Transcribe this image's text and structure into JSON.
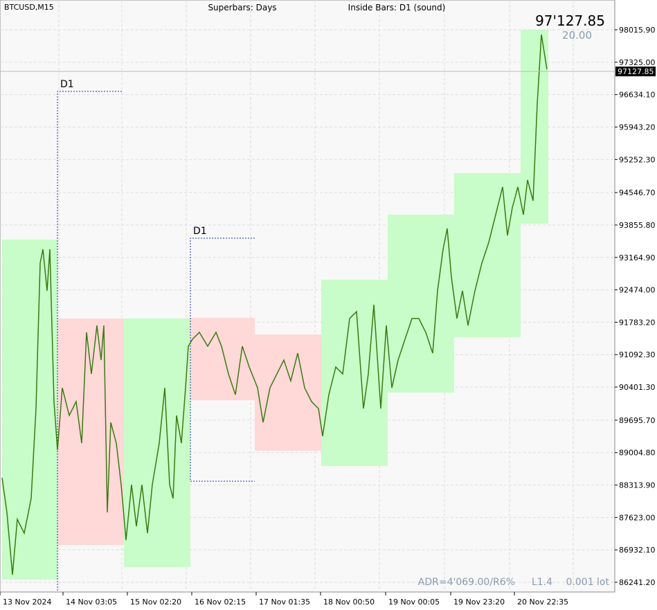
{
  "chart_data": {
    "type": "superbars",
    "symbol": "BTCUSD,M15",
    "superbars_label": "Superbars: Days",
    "inside_label": "Inside Bars: D1  (sound)",
    "big_price": "97'127.85",
    "spread": "20.00",
    "adr": "ADR=4'069.00/R6%",
    "leverage": "L1.4",
    "lot": "0.001 lot",
    "ylim": [
      86034.6,
      98650.4
    ],
    "xlim": [
      0,
      888
    ],
    "grid": true,
    "yticks": [
      {
        "value": 98015.9,
        "label": "98015.90"
      },
      {
        "value": 97325.0,
        "label": "97325.00"
      },
      {
        "value": 96634.1,
        "label": "96634.10"
      },
      {
        "value": 95943.2,
        "label": "95943.20"
      },
      {
        "value": 95252.3,
        "label": "95252.30"
      },
      {
        "value": 94546.7,
        "label": "94546.70"
      },
      {
        "value": 93855.8,
        "label": "93855.80"
      },
      {
        "value": 93164.9,
        "label": "93164.90"
      },
      {
        "value": 92474.0,
        "label": "92474.00"
      },
      {
        "value": 91783.2,
        "label": "91783.20"
      },
      {
        "value": 91092.3,
        "label": "91092.30"
      },
      {
        "value": 90401.3,
        "label": "90401.30"
      },
      {
        "value": 89695.7,
        "label": "89695.70"
      },
      {
        "value": 89004.8,
        "label": "89004.80"
      },
      {
        "value": 88313.9,
        "label": "88313.90"
      },
      {
        "value": 87623.0,
        "label": "87623.00"
      },
      {
        "value": 86932.1,
        "label": "86932.10"
      },
      {
        "value": 86241.2,
        "label": "86241.20"
      }
    ],
    "xticks": [
      {
        "value": 4,
        "label": "13 Nov 2024"
      },
      {
        "value": 95,
        "label": "14 Nov 03:05"
      },
      {
        "value": 188,
        "label": "15 Nov 02:20"
      },
      {
        "value": 281,
        "label": "16 Nov 02:15"
      },
      {
        "value": 374,
        "label": "17 Nov 01:35"
      },
      {
        "value": 467,
        "label": "18 Nov 00:50"
      },
      {
        "value": 561,
        "label": "19 Nov 00:05"
      },
      {
        "value": 655,
        "label": "19 Nov 23:20"
      },
      {
        "value": 747,
        "label": "20 Nov 22:35"
      }
    ],
    "current_price": {
      "value": 97127.85,
      "label": "97127.85"
    },
    "superbars": [
      {
        "start": 3,
        "end": 83,
        "high": 93545,
        "low": 86300,
        "color": "#c8fcc8"
      },
      {
        "start": 83,
        "end": 179,
        "high": 91863,
        "low": 87037,
        "color": "#ffd8d8"
      },
      {
        "start": 179,
        "end": 275,
        "high": 91863,
        "low": 86565,
        "color": "#c8fcc8"
      },
      {
        "start": 275,
        "end": 368,
        "high": 91877,
        "low": 90121,
        "color": "#ffd8d8"
      },
      {
        "start": 368,
        "end": 464,
        "high": 91523,
        "low": 89044,
        "color": "#ffd8d8"
      },
      {
        "start": 464,
        "end": 560,
        "high": 92689,
        "low": 88720,
        "color": "#c8fcc8"
      },
      {
        "start": 560,
        "end": 656,
        "high": 94076,
        "low": 90284,
        "color": "#c8fcc8"
      },
      {
        "start": 656,
        "end": 752,
        "high": 94961,
        "low": 91464,
        "color": "#c8fcc8"
      },
      {
        "start": 752,
        "end": 792,
        "high": 98016,
        "low": 93884,
        "color": "#c8fcc8"
      }
    ],
    "inside_bars": [
      {
        "label": "D1",
        "start": 83,
        "end": 176,
        "high": 96703,
        "low": null
      },
      {
        "label": "D1",
        "start": 275,
        "end": 368,
        "high": 93574,
        "low": 88395
      }
    ],
    "series": [
      {
        "name": "BTCUSD",
        "color": "#3a7a10",
        "x": [
          3,
          10,
          18,
          25,
          35,
          45,
          52,
          58,
          62,
          68,
          72,
          78,
          83,
          90,
          100,
          110,
          118,
          125,
          132,
          140,
          146,
          150,
          155,
          160,
          168,
          175,
          182,
          190,
          197,
          205,
          213,
          220,
          230,
          238,
          245,
          250,
          255,
          262,
          268,
          272,
          278,
          288,
          300,
          312,
          320,
          330,
          340,
          350,
          360,
          372,
          380,
          390,
          400,
          410,
          420,
          430,
          440,
          450,
          460,
          466,
          475,
          485,
          495,
          505,
          515,
          525,
          532,
          540,
          550,
          558,
          566,
          575,
          585,
          595,
          605,
          615,
          625,
          632,
          640,
          646,
          652,
          660,
          668,
          676,
          686,
          696,
          706,
          716,
          726,
          733,
          740,
          748,
          756,
          762,
          770,
          776,
          782,
          790
        ],
        "values": [
          88469,
          87731,
          86403,
          87583,
          87288,
          88028,
          89944,
          93043,
          93338,
          92453,
          93338,
          90092,
          89059,
          90387,
          89797,
          90092,
          89207,
          91568,
          90682,
          91715,
          90977,
          91715,
          87731,
          89649,
          89207,
          88321,
          87141,
          88321,
          87436,
          88321,
          87288,
          88321,
          89207,
          90387,
          88321,
          88028,
          89797,
          89207,
          90387,
          91272,
          91420,
          91568,
          91272,
          91568,
          91272,
          90682,
          90239,
          91272,
          90829,
          90387,
          89649,
          90387,
          90682,
          90977,
          90534,
          91125,
          90387,
          90092,
          89944,
          89354,
          90239,
          90829,
          90682,
          91863,
          92010,
          89944,
          90682,
          92158,
          89944,
          91715,
          90387,
          90977,
          91420,
          91863,
          91863,
          91568,
          91125,
          92453,
          93338,
          93781,
          92748,
          91863,
          92453,
          91715,
          92453,
          93043,
          93486,
          94076,
          94666,
          93633,
          94224,
          94666,
          94076,
          94814,
          94372,
          96437,
          97913,
          97175
        ]
      }
    ]
  }
}
